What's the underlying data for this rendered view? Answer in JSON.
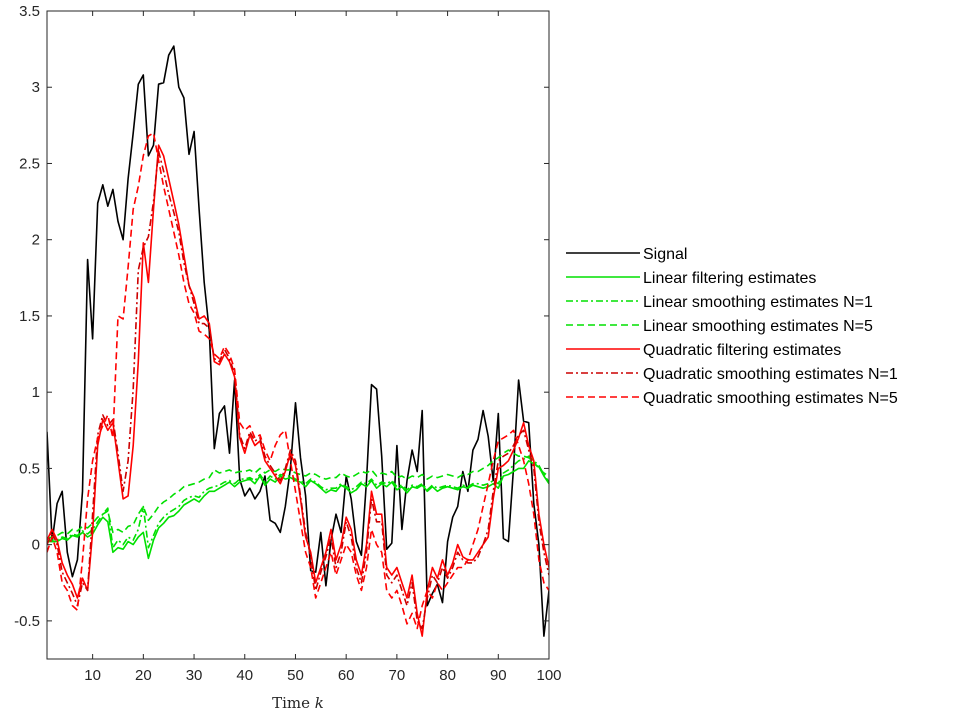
{
  "chart_data": {
    "type": "line",
    "title": "",
    "xlabel": "Time",
    "xlabel_var": "k",
    "ylabel": "",
    "xlim": [
      1,
      100
    ],
    "ylim": [
      -0.75,
      3.5
    ],
    "xticks": [
      10,
      20,
      30,
      40,
      50,
      60,
      70,
      80,
      90,
      100
    ],
    "yticks": [
      -0.5,
      0,
      0.5,
      1,
      1.5,
      2,
      2.5,
      3,
      3.5
    ],
    "ytick_labels": [
      "-0.5",
      "0",
      "0.5",
      "1",
      "1.5",
      "2",
      "2.5",
      "3",
      "3.5"
    ],
    "grid": false,
    "legend_position": "outside-right",
    "x": [
      1,
      2,
      3,
      4,
      5,
      6,
      7,
      8,
      9,
      10,
      11,
      12,
      13,
      14,
      15,
      16,
      17,
      18,
      19,
      20,
      21,
      22,
      23,
      24,
      25,
      26,
      27,
      28,
      29,
      30,
      31,
      32,
      33,
      34,
      35,
      36,
      37,
      38,
      39,
      40,
      41,
      42,
      43,
      44,
      45,
      46,
      47,
      48,
      49,
      50,
      51,
      52,
      53,
      54,
      55,
      56,
      57,
      58,
      59,
      60,
      61,
      62,
      63,
      64,
      65,
      66,
      67,
      68,
      69,
      70,
      71,
      72,
      73,
      74,
      75,
      76,
      77,
      78,
      79,
      80,
      81,
      82,
      83,
      84,
      85,
      86,
      87,
      88,
      89,
      90,
      91,
      92,
      93,
      94,
      95,
      96,
      97,
      98,
      99,
      100
    ],
    "series": [
      {
        "name": "Signal",
        "color": "#000000",
        "dash": "solid",
        "values": [
          0.74,
          0.02,
          0.27,
          0.35,
          -0.05,
          -0.21,
          -0.1,
          0.35,
          1.87,
          1.35,
          2.24,
          2.36,
          2.22,
          2.33,
          2.12,
          2.0,
          2.4,
          2.7,
          3.02,
          3.08,
          2.55,
          2.62,
          3.02,
          3.03,
          3.21,
          3.27,
          3.0,
          2.93,
          2.56,
          2.71,
          2.2,
          1.72,
          1.4,
          0.63,
          0.86,
          0.91,
          0.6,
          1.08,
          0.43,
          0.32,
          0.37,
          0.3,
          0.35,
          0.45,
          0.16,
          0.14,
          0.08,
          0.25,
          0.5,
          0.93,
          0.57,
          0.32,
          -0.17,
          -0.18,
          0.08,
          -0.27,
          0.03,
          0.2,
          0.08,
          0.45,
          0.3,
          0.02,
          -0.07,
          0.42,
          1.05,
          1.02,
          0.58,
          -0.03,
          0.01,
          0.65,
          0.1,
          0.42,
          0.62,
          0.48,
          0.88,
          -0.4,
          -0.32,
          -0.26,
          -0.38,
          0.02,
          0.18,
          0.25,
          0.48,
          0.35,
          0.62,
          0.69,
          0.88,
          0.71,
          0.42,
          0.86,
          0.04,
          0.02,
          0.5,
          1.08,
          0.81,
          0.8,
          0.27,
          0.0,
          -0.6,
          -0.3
        ]
      },
      {
        "name": "Linear filtering estimates",
        "color": "#00e000",
        "dash": "solid",
        "values": [
          0.02,
          0.02,
          0.02,
          0.04,
          0.03,
          0.06,
          0.05,
          0.08,
          0.05,
          0.07,
          0.13,
          0.18,
          0.15,
          -0.05,
          -0.02,
          -0.03,
          0.02,
          0.0,
          0.05,
          0.08,
          -0.09,
          0.03,
          0.11,
          0.14,
          0.18,
          0.19,
          0.22,
          0.26,
          0.28,
          0.3,
          0.28,
          0.32,
          0.35,
          0.35,
          0.37,
          0.39,
          0.41,
          0.38,
          0.41,
          0.42,
          0.43,
          0.4,
          0.45,
          0.39,
          0.43,
          0.41,
          0.45,
          0.43,
          0.44,
          0.42,
          0.41,
          0.38,
          0.42,
          0.4,
          0.37,
          0.34,
          0.36,
          0.35,
          0.39,
          0.37,
          0.34,
          0.36,
          0.4,
          0.38,
          0.42,
          0.37,
          0.4,
          0.38,
          0.41,
          0.36,
          0.38,
          0.34,
          0.38,
          0.37,
          0.39,
          0.35,
          0.38,
          0.35,
          0.37,
          0.38,
          0.37,
          0.36,
          0.38,
          0.37,
          0.39,
          0.38,
          0.37,
          0.38,
          0.4,
          0.37,
          0.45,
          0.46,
          0.48,
          0.5,
          0.5,
          0.55,
          0.53,
          0.51,
          0.45,
          0.4
        ]
      },
      {
        "name": "Linear smoothing estimates N=1",
        "color": "#00e000",
        "dash": "dashdot",
        "values": [
          0.02,
          0.03,
          0.03,
          0.05,
          0.04,
          0.07,
          0.06,
          0.09,
          0.07,
          0.1,
          0.15,
          0.2,
          0.24,
          -0.02,
          0.03,
          0.0,
          0.05,
          0.03,
          0.1,
          0.25,
          -0.02,
          0.06,
          0.14,
          0.18,
          0.21,
          0.23,
          0.25,
          0.29,
          0.31,
          0.32,
          0.31,
          0.35,
          0.37,
          0.38,
          0.39,
          0.41,
          0.42,
          0.4,
          0.43,
          0.43,
          0.44,
          0.42,
          0.46,
          0.41,
          0.45,
          0.43,
          0.46,
          0.45,
          0.45,
          0.43,
          0.42,
          0.4,
          0.43,
          0.41,
          0.38,
          0.36,
          0.37,
          0.37,
          0.4,
          0.38,
          0.36,
          0.38,
          0.41,
          0.4,
          0.43,
          0.39,
          0.41,
          0.4,
          0.42,
          0.38,
          0.39,
          0.36,
          0.39,
          0.38,
          0.4,
          0.36,
          0.39,
          0.37,
          0.38,
          0.39,
          0.38,
          0.37,
          0.39,
          0.38,
          0.4,
          0.4,
          0.39,
          0.4,
          0.42,
          0.4,
          0.47,
          0.49,
          0.52,
          0.55,
          0.56,
          0.58,
          0.55,
          0.52,
          0.46,
          0.41
        ]
      },
      {
        "name": "Linear smoothing estimates N=5",
        "color": "#00e000",
        "dash": "dashed",
        "values": [
          0.04,
          0.05,
          0.06,
          0.08,
          0.07,
          0.1,
          0.09,
          0.12,
          0.11,
          0.14,
          0.18,
          0.2,
          0.22,
          0.08,
          0.1,
          0.08,
          0.12,
          0.13,
          0.2,
          0.25,
          0.16,
          0.2,
          0.25,
          0.28,
          0.3,
          0.33,
          0.35,
          0.38,
          0.39,
          0.4,
          0.41,
          0.43,
          0.44,
          0.49,
          0.47,
          0.48,
          0.49,
          0.47,
          0.48,
          0.48,
          0.49,
          0.47,
          0.5,
          0.47,
          0.49,
          0.48,
          0.5,
          0.49,
          0.49,
          0.47,
          0.46,
          0.45,
          0.47,
          0.46,
          0.44,
          0.43,
          0.44,
          0.44,
          0.47,
          0.45,
          0.44,
          0.46,
          0.48,
          0.47,
          0.49,
          0.45,
          0.47,
          0.46,
          0.48,
          0.44,
          0.45,
          0.43,
          0.45,
          0.44,
          0.46,
          0.43,
          0.45,
          0.44,
          0.45,
          0.46,
          0.45,
          0.44,
          0.46,
          0.46,
          0.48,
          0.48,
          0.5,
          0.52,
          0.55,
          0.57,
          0.6,
          0.62,
          0.6,
          0.58,
          0.58,
          0.57,
          0.54,
          0.5,
          0.47,
          0.45
        ]
      },
      {
        "name": "Quadratic filtering estimates",
        "color": "#ff0000",
        "dash": "solid",
        "values": [
          0.03,
          0.1,
          0.03,
          -0.12,
          -0.2,
          -0.26,
          -0.35,
          -0.22,
          -0.3,
          0.08,
          0.65,
          0.82,
          0.75,
          0.8,
          0.55,
          0.3,
          0.32,
          0.65,
          1.2,
          1.98,
          1.72,
          2.2,
          2.62,
          2.55,
          2.4,
          2.25,
          2.1,
          1.9,
          1.7,
          1.62,
          1.48,
          1.5,
          1.45,
          1.2,
          1.18,
          1.25,
          1.2,
          1.1,
          0.7,
          0.6,
          0.72,
          0.65,
          0.68,
          0.55,
          0.5,
          0.45,
          0.4,
          0.48,
          0.6,
          0.52,
          0.3,
          0.05,
          -0.05,
          -0.25,
          -0.15,
          -0.05,
          0.1,
          -0.1,
          0.0,
          0.18,
          0.1,
          -0.1,
          -0.2,
          0.0,
          0.35,
          0.2,
          0.2,
          -0.15,
          -0.2,
          -0.15,
          -0.25,
          -0.35,
          -0.2,
          -0.45,
          -0.6,
          -0.3,
          -0.15,
          -0.22,
          -0.1,
          -0.2,
          -0.12,
          0.0,
          -0.08,
          -0.1,
          -0.1,
          -0.05,
          0.0,
          0.05,
          0.3,
          0.5,
          0.52,
          0.55,
          0.62,
          0.7,
          0.8,
          0.65,
          0.55,
          0.2,
          0.0,
          -0.15
        ]
      },
      {
        "name": "Quadratic smoothing estimates N=1",
        "color": "#cc0000",
        "dash": "dashdot",
        "values": [
          0.0,
          0.08,
          0.0,
          -0.18,
          -0.25,
          -0.32,
          -0.4,
          -0.25,
          -0.3,
          0.2,
          0.72,
          0.85,
          0.78,
          0.82,
          0.6,
          0.35,
          0.55,
          1.02,
          1.8,
          1.95,
          2.02,
          2.25,
          2.58,
          2.45,
          2.3,
          2.18,
          2.05,
          1.85,
          1.7,
          1.58,
          1.45,
          1.45,
          1.42,
          1.22,
          1.2,
          1.28,
          1.22,
          1.12,
          0.72,
          0.63,
          0.74,
          0.68,
          0.7,
          0.58,
          0.52,
          0.47,
          0.42,
          0.5,
          0.62,
          0.55,
          0.32,
          0.08,
          -0.08,
          -0.3,
          -0.18,
          -0.08,
          0.05,
          -0.15,
          -0.05,
          0.15,
          0.05,
          -0.15,
          -0.25,
          -0.05,
          0.3,
          0.15,
          0.15,
          -0.2,
          -0.25,
          -0.2,
          -0.3,
          -0.4,
          -0.25,
          -0.5,
          -0.55,
          -0.35,
          -0.2,
          -0.25,
          -0.15,
          -0.22,
          -0.15,
          -0.05,
          -0.1,
          -0.12,
          -0.12,
          -0.08,
          0.0,
          0.1,
          0.35,
          0.55,
          0.58,
          0.6,
          0.65,
          0.72,
          0.75,
          0.62,
          0.5,
          0.15,
          -0.05,
          -0.2
        ]
      },
      {
        "name": "Quadratic smoothing estimates N=5",
        "color": "#ff0000",
        "dash": "dashed",
        "values": [
          -0.05,
          0.05,
          -0.05,
          -0.25,
          -0.3,
          -0.4,
          -0.43,
          -0.1,
          0.3,
          0.55,
          0.7,
          0.78,
          0.85,
          0.7,
          1.5,
          1.48,
          1.82,
          2.2,
          2.35,
          2.55,
          2.68,
          2.7,
          2.52,
          2.35,
          2.2,
          2.05,
          1.9,
          1.72,
          1.58,
          1.52,
          1.4,
          1.38,
          1.35,
          1.25,
          1.22,
          1.3,
          1.25,
          1.15,
          0.8,
          0.75,
          0.78,
          0.7,
          0.72,
          0.62,
          0.55,
          0.65,
          0.72,
          0.75,
          0.55,
          0.35,
          0.15,
          -0.05,
          -0.15,
          -0.35,
          -0.25,
          -0.15,
          -0.05,
          -0.2,
          -0.1,
          0.0,
          -0.05,
          -0.2,
          -0.3,
          -0.15,
          0.1,
          0.0,
          -0.05,
          -0.3,
          -0.35,
          -0.3,
          -0.4,
          -0.52,
          -0.45,
          -0.55,
          -0.4,
          -0.3,
          -0.35,
          -0.25,
          -0.3,
          -0.25,
          -0.2,
          -0.15,
          -0.15,
          -0.1,
          0.0,
          0.1,
          0.25,
          0.4,
          0.55,
          0.68,
          0.7,
          0.72,
          0.75,
          0.65,
          0.55,
          0.4,
          0.2,
          -0.1,
          -0.25,
          -0.3
        ]
      }
    ]
  }
}
